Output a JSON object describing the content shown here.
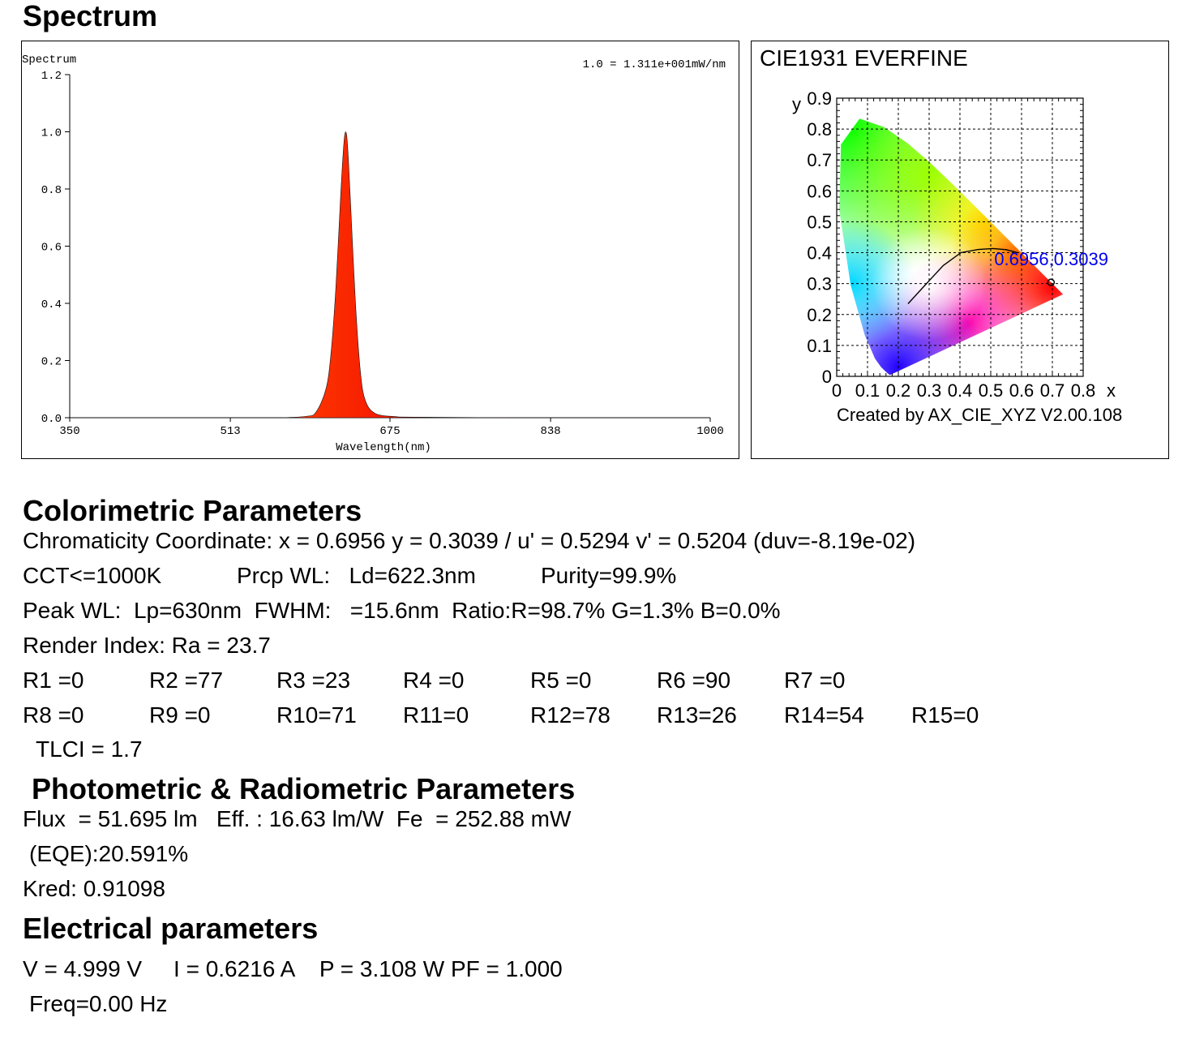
{
  "headings": {
    "spectrum": "Spectrum",
    "colorimetric": "Colorimetric Parameters",
    "photometric": "Photometric & Radiometric Parameters",
    "electrical": "Electrical parameters"
  },
  "chart_data": [
    {
      "type": "area",
      "title": "Spectrum",
      "scale_note": "1.0 = 1.311e+001mW/nm",
      "xlabel": "Wavelength(nm)",
      "ylabel": "",
      "xlim": [
        350,
        1000
      ],
      "ylim": [
        0.0,
        1.2
      ],
      "x_ticks": [
        "350",
        "513",
        "675",
        "838",
        "1000"
      ],
      "y_ticks": [
        "0.0",
        "0.2",
        "0.4",
        "0.6",
        "0.8",
        "1.0",
        "1.2"
      ],
      "x": [
        350,
        400,
        500,
        560,
        590,
        600,
        610,
        615,
        620,
        625,
        628,
        630,
        632,
        635,
        640,
        645,
        650,
        660,
        680,
        700,
        800,
        900,
        1000
      ],
      "y": [
        0.0,
        0.0,
        0.0,
        0.0,
        0.005,
        0.02,
        0.1,
        0.22,
        0.45,
        0.78,
        0.95,
        1.0,
        0.95,
        0.75,
        0.4,
        0.16,
        0.06,
        0.015,
        0.004,
        0.002,
        0.0,
        0.0,
        0.0
      ],
      "grid": false
    },
    {
      "type": "scatter",
      "title": "CIE1931  EVERFINE",
      "footer": "Created by AX_CIE_XYZ V2.00.108",
      "xlabel": "x",
      "ylabel": "y",
      "xlim": [
        0,
        0.8
      ],
      "ylim": [
        0,
        0.9
      ],
      "x_ticks": [
        "0",
        "0.1",
        "0.2",
        "0.3",
        "0.4",
        "0.5",
        "0.6",
        "0.7",
        "0.8"
      ],
      "y_ticks": [
        "0",
        "0.1",
        "0.2",
        "0.3",
        "0.4",
        "0.5",
        "0.6",
        "0.7",
        "0.8",
        "0.9"
      ],
      "point": {
        "x": 0.6956,
        "y": 0.3039,
        "label": "0.6956,0.3039"
      },
      "locus": {
        "x": [
          0.1741,
          0.1738,
          0.1733,
          0.1721,
          0.1689,
          0.1644,
          0.1566,
          0.144,
          0.1241,
          0.0913,
          0.0454,
          0.0082,
          0.0139,
          0.0743,
          0.1547,
          0.2296,
          0.3016,
          0.3731,
          0.4441,
          0.5125,
          0.5752,
          0.627,
          0.6658,
          0.6915,
          0.7079,
          0.7347
        ],
        "y": [
          0.005,
          0.0049,
          0.0048,
          0.0048,
          0.0069,
          0.0109,
          0.0177,
          0.0297,
          0.0578,
          0.1327,
          0.295,
          0.5384,
          0.7502,
          0.8338,
          0.8059,
          0.7543,
          0.6923,
          0.6245,
          0.5547,
          0.4866,
          0.4242,
          0.3725,
          0.334,
          0.3083,
          0.292,
          0.2653
        ]
      },
      "planckian": {
        "x": [
          0.2315,
          0.2806,
          0.3457,
          0.4033,
          0.4599,
          0.5079,
          0.5497,
          0.5892
        ],
        "y": [
          0.2349,
          0.2883,
          0.3585,
          0.4002,
          0.4106,
          0.4135,
          0.4098,
          0.3996
        ]
      },
      "grid": true
    }
  ],
  "colorimetric": {
    "chromaticity": "Chromaticity Coordinate: x = 0.6956 y = 0.3039 / u' = 0.5294 v' = 0.5204 (duv=-8.19e-02)",
    "cct": "CCT<=1000K",
    "prcp": "Prcp WL:   Ld=622.3nm",
    "purity": "Purity=99.9%",
    "peak": "Peak WL:  Lp=630nm  FWHM:   =15.6nm  Ratio:R=98.7% G=1.3% B=0.0%",
    "render": "Render Index: Ra = 23.7",
    "r_row1": [
      "R1 =0",
      "R2 =77",
      "R3 =23",
      "R4 =0",
      "R5 =0",
      "R6 =90",
      "R7 =0"
    ],
    "r_row2": [
      "R8 =0",
      "R9 =0",
      "R10=71",
      "R11=0",
      "R12=78",
      "R13=26",
      "R14=54",
      "R15=0"
    ],
    "tlci": "TLCI = 1.7"
  },
  "photometric": {
    "flux": "Flux  = 51.695 lm   Eff. : 16.63 lm/W  Fe  = 252.88 mW",
    "eqe": "(EQE):20.591%",
    "kred": "Kred: 0.91098"
  },
  "electrical": {
    "vip": "V = 4.999 V     I = 0.6216 A    P = 3.108 W PF = 1.000",
    "freq": "Freq=0.00 Hz"
  }
}
